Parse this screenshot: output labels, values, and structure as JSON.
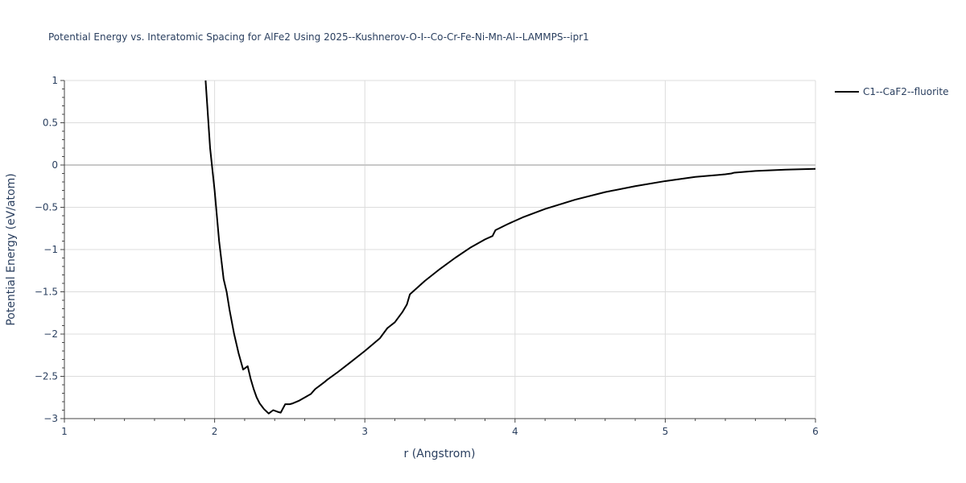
{
  "chart_data": {
    "type": "line",
    "title": "Potential Energy vs. Interatomic Spacing for AlFe2 Using 2025--Kushnerov-O-I--Co-Cr-Fe-Ni-Mn-Al--LAMMPS--ipr1",
    "xlabel": "r (Angstrom)",
    "ylabel": "Potential Energy (eV/atom)",
    "xlim": [
      1,
      6
    ],
    "ylim": [
      -3,
      1
    ],
    "xticks": [
      1,
      2,
      3,
      4,
      5,
      6
    ],
    "xtick_labels": [
      "1",
      "2",
      "3",
      "4",
      "5",
      "6"
    ],
    "yticks": [
      1,
      0.5,
      0,
      -0.5,
      -1,
      -1.5,
      -2,
      -2.5,
      -3
    ],
    "ytick_labels": [
      "1",
      "0.5",
      "0",
      "−0.5",
      "−1",
      "−1.5",
      "−2",
      "−2.5",
      "−3"
    ],
    "grid": true,
    "legend_position": "top-right-outside",
    "series": [
      {
        "name": "C1--CaF2--fluorite",
        "color": "#000000",
        "x": [
          1.94,
          1.97,
          2.0,
          2.03,
          2.06,
          2.08,
          2.1,
          2.13,
          2.16,
          2.19,
          2.22,
          2.24,
          2.26,
          2.28,
          2.3,
          2.33,
          2.36,
          2.39,
          2.42,
          2.44,
          2.47,
          2.5,
          2.52,
          2.56,
          2.6,
          2.64,
          2.67,
          2.7,
          2.73,
          2.75,
          2.82,
          2.9,
          3.0,
          3.1,
          3.15,
          3.2,
          3.25,
          3.28,
          3.3,
          3.35,
          3.4,
          3.5,
          3.6,
          3.7,
          3.8,
          3.85,
          3.87,
          3.95,
          4.05,
          4.2,
          4.4,
          4.6,
          4.8,
          5.0,
          5.2,
          5.4,
          5.44,
          5.46,
          5.6,
          5.8,
          6.0
        ],
        "y": [
          1.0,
          0.2,
          -0.3,
          -0.9,
          -1.35,
          -1.5,
          -1.72,
          -2.0,
          -2.23,
          -2.42,
          -2.38,
          -2.53,
          -2.65,
          -2.75,
          -2.82,
          -2.89,
          -2.94,
          -2.9,
          -2.92,
          -2.93,
          -2.83,
          -2.83,
          -2.82,
          -2.79,
          -2.75,
          -2.71,
          -2.65,
          -2.61,
          -2.57,
          -2.54,
          -2.45,
          -2.34,
          -2.2,
          -2.05,
          -1.93,
          -1.86,
          -1.74,
          -1.65,
          -1.53,
          -1.45,
          -1.37,
          -1.23,
          -1.1,
          -0.98,
          -0.88,
          -0.84,
          -0.77,
          -0.7,
          -0.62,
          -0.52,
          -0.41,
          -0.32,
          -0.25,
          -0.19,
          -0.14,
          -0.11,
          -0.1,
          -0.09,
          -0.07,
          -0.055,
          -0.045
        ]
      }
    ]
  }
}
